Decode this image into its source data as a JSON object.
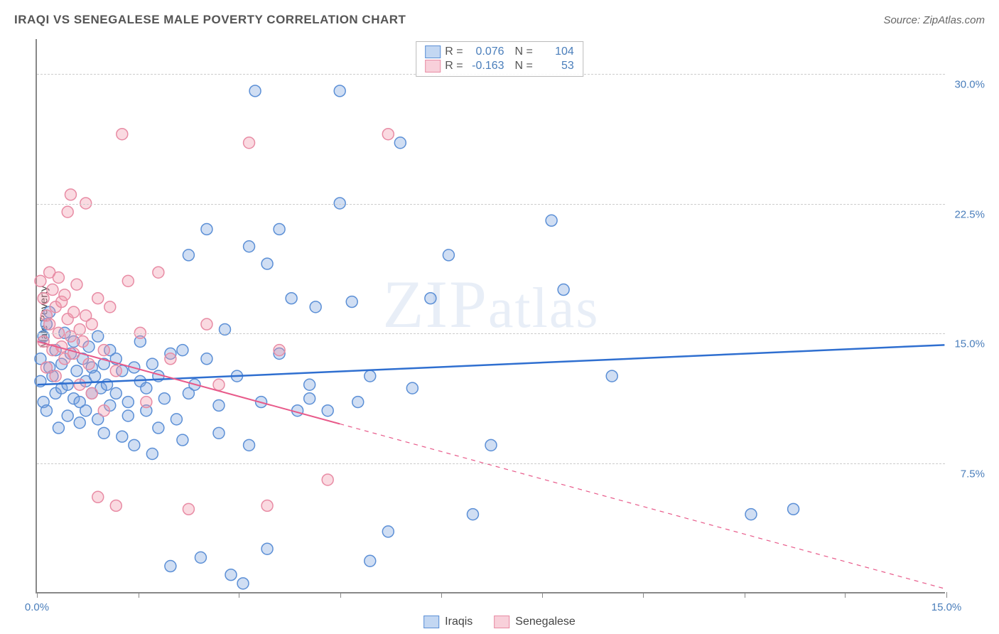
{
  "title": "IRAQI VS SENEGALESE MALE POVERTY CORRELATION CHART",
  "source": "Source: ZipAtlas.com",
  "y_axis_label": "Male Poverty",
  "watermark": "ZIPatlas",
  "chart": {
    "type": "scatter",
    "xlim": [
      0,
      15
    ],
    "ylim": [
      0,
      32
    ],
    "x_ticks": [
      0,
      1.67,
      3.33,
      5.0,
      6.67,
      8.33,
      10.0,
      11.67,
      13.33,
      15.0
    ],
    "x_tick_labels": {
      "0": "0.0%",
      "15": "15.0%"
    },
    "y_gridlines": [
      7.5,
      15.0,
      22.5,
      30.0
    ],
    "y_tick_labels": {
      "7.5": "7.5%",
      "15.0": "15.0%",
      "22.5": "22.5%",
      "30.0": "30.0%"
    },
    "background_color": "#ffffff",
    "grid_color": "#cccccc",
    "axis_color": "#888888",
    "marker_radius": 8,
    "marker_stroke_width": 1.5,
    "series": [
      {
        "name": "Iraqis",
        "fill": "rgba(120,160,220,0.35)",
        "stroke": "#5b8fd6",
        "swatch_fill": "#c3d7f2",
        "swatch_stroke": "#5b8fd6",
        "R": "0.076",
        "N": "104",
        "trend": {
          "x1": 0,
          "y1": 12.0,
          "x2": 15,
          "y2": 14.3,
          "color": "#2f6fd0",
          "width": 2.5,
          "solid_until_x": 15
        },
        "points": [
          [
            0.05,
            13.5
          ],
          [
            0.05,
            12.2
          ],
          [
            0.1,
            14.8
          ],
          [
            0.1,
            11.0
          ],
          [
            0.15,
            15.5
          ],
          [
            0.15,
            10.5
          ],
          [
            0.2,
            13.0
          ],
          [
            0.2,
            16.2
          ],
          [
            0.25,
            12.5
          ],
          [
            0.3,
            11.5
          ],
          [
            0.3,
            14.0
          ],
          [
            0.35,
            9.5
          ],
          [
            0.4,
            13.2
          ],
          [
            0.4,
            11.8
          ],
          [
            0.45,
            15.0
          ],
          [
            0.5,
            12.0
          ],
          [
            0.5,
            10.2
          ],
          [
            0.55,
            13.8
          ],
          [
            0.6,
            11.2
          ],
          [
            0.6,
            14.5
          ],
          [
            0.65,
            12.8
          ],
          [
            0.7,
            11.0
          ],
          [
            0.7,
            9.8
          ],
          [
            0.75,
            13.5
          ],
          [
            0.8,
            12.2
          ],
          [
            0.8,
            10.5
          ],
          [
            0.85,
            14.2
          ],
          [
            0.9,
            11.5
          ],
          [
            0.9,
            13.0
          ],
          [
            0.95,
            12.5
          ],
          [
            1.0,
            10.0
          ],
          [
            1.0,
            14.8
          ],
          [
            1.05,
            11.8
          ],
          [
            1.1,
            13.2
          ],
          [
            1.1,
            9.2
          ],
          [
            1.15,
            12.0
          ],
          [
            1.2,
            14.0
          ],
          [
            1.2,
            10.8
          ],
          [
            1.3,
            11.5
          ],
          [
            1.3,
            13.5
          ],
          [
            1.4,
            9.0
          ],
          [
            1.4,
            12.8
          ],
          [
            1.5,
            11.0
          ],
          [
            1.5,
            10.2
          ],
          [
            1.6,
            13.0
          ],
          [
            1.6,
            8.5
          ],
          [
            1.7,
            12.2
          ],
          [
            1.7,
            14.5
          ],
          [
            1.8,
            10.5
          ],
          [
            1.8,
            11.8
          ],
          [
            1.9,
            8.0
          ],
          [
            1.9,
            13.2
          ],
          [
            2.0,
            12.5
          ],
          [
            2.0,
            9.5
          ],
          [
            2.1,
            11.2
          ],
          [
            2.2,
            13.8
          ],
          [
            2.2,
            1.5
          ],
          [
            2.3,
            10.0
          ],
          [
            2.4,
            14.0
          ],
          [
            2.4,
            8.8
          ],
          [
            2.5,
            11.5
          ],
          [
            2.5,
            19.5
          ],
          [
            2.6,
            12.0
          ],
          [
            2.7,
            2.0
          ],
          [
            2.8,
            13.5
          ],
          [
            2.8,
            21.0
          ],
          [
            3.0,
            10.8
          ],
          [
            3.0,
            9.2
          ],
          [
            3.1,
            15.2
          ],
          [
            3.2,
            1.0
          ],
          [
            3.3,
            12.5
          ],
          [
            3.4,
            0.5
          ],
          [
            3.5,
            8.5
          ],
          [
            3.5,
            20.0
          ],
          [
            3.6,
            29.0
          ],
          [
            3.7,
            11.0
          ],
          [
            3.8,
            19.0
          ],
          [
            3.8,
            2.5
          ],
          [
            4.0,
            13.8
          ],
          [
            4.0,
            21.0
          ],
          [
            4.2,
            17.0
          ],
          [
            4.3,
            10.5
          ],
          [
            4.5,
            12.0
          ],
          [
            4.5,
            11.2
          ],
          [
            4.6,
            16.5
          ],
          [
            4.8,
            10.5
          ],
          [
            5.0,
            29.0
          ],
          [
            5.0,
            22.5
          ],
          [
            5.2,
            16.8
          ],
          [
            5.3,
            11.0
          ],
          [
            5.5,
            12.5
          ],
          [
            5.5,
            1.8
          ],
          [
            5.8,
            3.5
          ],
          [
            6.0,
            26.0
          ],
          [
            6.2,
            11.8
          ],
          [
            6.5,
            17.0
          ],
          [
            6.8,
            19.5
          ],
          [
            7.2,
            4.5
          ],
          [
            7.5,
            8.5
          ],
          [
            8.5,
            21.5
          ],
          [
            8.7,
            17.5
          ],
          [
            9.5,
            12.5
          ],
          [
            11.8,
            4.5
          ],
          [
            12.5,
            4.8
          ]
        ]
      },
      {
        "name": "Senegalese",
        "fill": "rgba(240,150,170,0.35)",
        "stroke": "#e88ba4",
        "swatch_fill": "#f8d0da",
        "swatch_stroke": "#e88ba4",
        "R": "-0.163",
        "N": "53",
        "trend": {
          "x1": 0,
          "y1": 14.5,
          "x2": 15,
          "y2": 0.2,
          "color": "#e85a8a",
          "width": 2,
          "solid_until_x": 5.0
        },
        "points": [
          [
            0.05,
            18.0
          ],
          [
            0.1,
            14.5
          ],
          [
            0.1,
            17.0
          ],
          [
            0.15,
            16.0
          ],
          [
            0.15,
            13.0
          ],
          [
            0.2,
            18.5
          ],
          [
            0.2,
            15.5
          ],
          [
            0.25,
            14.0
          ],
          [
            0.25,
            17.5
          ],
          [
            0.3,
            16.5
          ],
          [
            0.3,
            12.5
          ],
          [
            0.35,
            15.0
          ],
          [
            0.35,
            18.2
          ],
          [
            0.4,
            14.2
          ],
          [
            0.4,
            16.8
          ],
          [
            0.45,
            13.5
          ],
          [
            0.45,
            17.2
          ],
          [
            0.5,
            15.8
          ],
          [
            0.5,
            22.0
          ],
          [
            0.55,
            14.8
          ],
          [
            0.55,
            23.0
          ],
          [
            0.6,
            16.2
          ],
          [
            0.6,
            13.8
          ],
          [
            0.65,
            17.8
          ],
          [
            0.7,
            15.2
          ],
          [
            0.7,
            12.0
          ],
          [
            0.75,
            14.5
          ],
          [
            0.8,
            22.5
          ],
          [
            0.8,
            16.0
          ],
          [
            0.85,
            13.2
          ],
          [
            0.9,
            15.5
          ],
          [
            0.9,
            11.5
          ],
          [
            1.0,
            17.0
          ],
          [
            1.0,
            5.5
          ],
          [
            1.1,
            14.0
          ],
          [
            1.1,
            10.5
          ],
          [
            1.2,
            16.5
          ],
          [
            1.3,
            12.8
          ],
          [
            1.3,
            5.0
          ],
          [
            1.4,
            26.5
          ],
          [
            1.5,
            18.0
          ],
          [
            1.7,
            15.0
          ],
          [
            1.8,
            11.0
          ],
          [
            2.0,
            18.5
          ],
          [
            2.2,
            13.5
          ],
          [
            2.5,
            4.8
          ],
          [
            2.8,
            15.5
          ],
          [
            3.0,
            12.0
          ],
          [
            3.5,
            26.0
          ],
          [
            3.8,
            5.0
          ],
          [
            4.0,
            14.0
          ],
          [
            4.8,
            6.5
          ],
          [
            5.8,
            26.5
          ]
        ]
      }
    ],
    "bottom_legend": [
      "Iraqis",
      "Senegalese"
    ]
  }
}
